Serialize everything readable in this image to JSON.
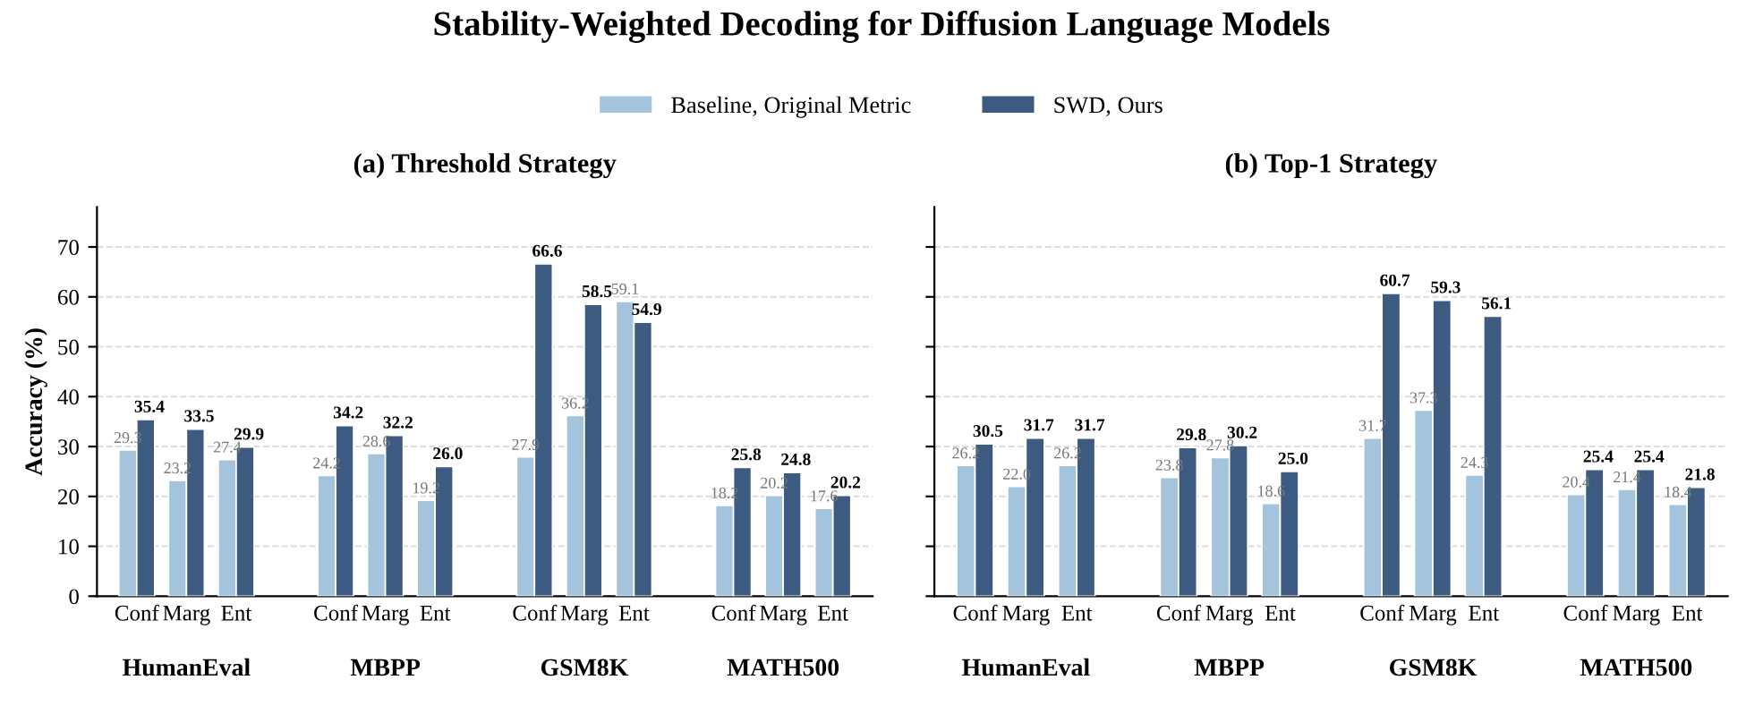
{
  "chart_data": [
    {
      "type": "bar",
      "title": "Stability-Weighted Decoding for Diffusion Language Models",
      "subtitle": "(a) Threshold Strategy",
      "ylabel": "Accuracy (%)",
      "categories": [
        "Conf",
        "Marg",
        "Ent",
        null,
        "Conf",
        "Marg",
        "Ent",
        null,
        "Conf",
        "Marg",
        "Ent",
        null,
        "Conf",
        "Marg",
        "Ent"
      ],
      "series": [
        {
          "name": "Baseline, Original Metric",
          "color": "#a3c4dc",
          "values": [
            29.3,
            23.2,
            27.4,
            null,
            24.2,
            28.6,
            19.2,
            null,
            27.9,
            36.2,
            59.1,
            null,
            18.2,
            20.2,
            17.6
          ],
          "value_labels": [
            "29.3",
            "23.2",
            "27.4",
            null,
            "24.2",
            "28.6",
            "19.2",
            null,
            "27.9",
            "36.2",
            "59.1",
            null,
            "18.2",
            "20.2",
            "17.6"
          ]
        },
        {
          "name": "SWD, Ours",
          "color": "#3d5a80",
          "values": [
            35.4,
            33.5,
            29.9,
            null,
            34.2,
            32.2,
            26.0,
            null,
            66.6,
            58.5,
            54.9,
            null,
            25.8,
            24.8,
            20.2
          ],
          "value_labels": [
            "35.4",
            "33.5",
            "29.9",
            null,
            "34.2",
            "32.2",
            "26.0",
            null,
            "66.6",
            "58.5",
            "54.9",
            null,
            "25.8",
            "24.8",
            "20.2"
          ]
        }
      ],
      "annotations": [
        "HumanEval",
        "MBPP",
        "GSM8K",
        "MATH500"
      ],
      "ylim": [
        0,
        78
      ],
      "yticks": [
        0,
        10,
        20,
        30,
        40,
        50,
        60,
        70
      ],
      "grid": "y",
      "legend": "top",
      "data_labels": true
    },
    {
      "type": "bar",
      "subtitle": "(b) Top-1 Strategy",
      "categories": [
        "Conf",
        "Marg",
        "Ent",
        null,
        "Conf",
        "Marg",
        "Ent",
        null,
        "Conf",
        "Marg",
        "Ent",
        null,
        "Conf",
        "Marg",
        "Ent"
      ],
      "series": [
        {
          "color": "#a3c4dc",
          "values": [
            26.2,
            22.0,
            26.2,
            null,
            23.8,
            27.8,
            18.6,
            null,
            31.7,
            37.3,
            24.3,
            null,
            20.4,
            21.4,
            18.4
          ],
          "value_labels": [
            "26.2",
            "22.0",
            "26.2",
            null,
            "23.8",
            "27.8",
            "18.6",
            null,
            "31.7",
            "37.3",
            "24.3",
            null,
            "20.4",
            "21.4",
            "18.4"
          ]
        },
        {
          "color": "#3d5a80",
          "values": [
            30.5,
            31.7,
            31.7,
            null,
            29.8,
            30.2,
            25.0,
            null,
            60.7,
            59.3,
            56.1,
            null,
            25.4,
            25.4,
            21.8
          ],
          "value_labels": [
            "30.5",
            "31.7",
            "31.7",
            null,
            "29.8",
            "30.2",
            "25.0",
            null,
            "60.7",
            "59.3",
            "56.1",
            null,
            "25.4",
            "25.4",
            "21.8"
          ]
        }
      ],
      "annotations": [
        "HumanEval",
        "MBPP",
        "GSM8K",
        "MATH500"
      ],
      "ylim": [
        0,
        78
      ],
      "yticks": [
        0,
        10,
        20,
        30,
        40,
        50,
        60,
        70
      ],
      "grid": "y",
      "tick_labels": "x",
      "data_labels": true
    }
  ]
}
